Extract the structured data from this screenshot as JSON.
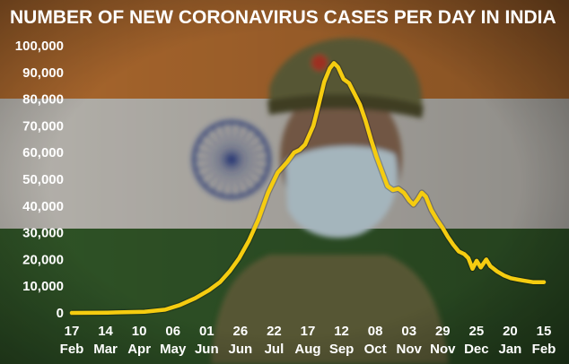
{
  "colors": {
    "line": "#f5cc10",
    "text": "#ffffff",
    "flag_saffron": "#d9843a",
    "flag_white": "#e8e4dc",
    "flag_green": "#3d6b32",
    "chakra": "#2a3f8c",
    "uniform": "#6b6a3f",
    "mask": "#c9dde6"
  },
  "background_image": {
    "description_icon": "indian-flag-with-masked-police-officer-photo"
  },
  "chart_data": {
    "type": "line",
    "title": "NUMBER OF NEW CORONAVIRUS CASES PER DAY IN INDIA",
    "ylim": [
      0,
      100000
    ],
    "yticks": [
      "0",
      "10,000",
      "20,000",
      "30,000",
      "40,000",
      "50,000",
      "60,000",
      "70,000",
      "80,000",
      "90,000",
      "100,000"
    ],
    "ytick_values": [
      0,
      10000,
      20000,
      30000,
      40000,
      50000,
      60000,
      70000,
      80000,
      90000,
      100000
    ],
    "xticks": [
      {
        "day": "17",
        "month": "Feb"
      },
      {
        "day": "14",
        "month": "Mar"
      },
      {
        "day": "10",
        "month": "Apr"
      },
      {
        "day": "06",
        "month": "May"
      },
      {
        "day": "01",
        "month": "Jun"
      },
      {
        "day": "26",
        "month": "Jun"
      },
      {
        "day": "22",
        "month": "Jul"
      },
      {
        "day": "17",
        "month": "Aug"
      },
      {
        "day": "12",
        "month": "Sep"
      },
      {
        "day": "08",
        "month": "Oct"
      },
      {
        "day": "03",
        "month": "Nov"
      },
      {
        "day": "29",
        "month": "Nov"
      },
      {
        "day": "25",
        "month": "Dec"
      },
      {
        "day": "20",
        "month": "Jan"
      },
      {
        "day": "15",
        "month": "Feb"
      }
    ],
    "series": [
      {
        "values": [
          [
            0,
            0
          ],
          [
            26,
            100
          ],
          [
            53,
            400
          ],
          [
            68,
            1200
          ],
          [
            79,
            3000
          ],
          [
            90,
            5500
          ],
          [
            100,
            8500
          ],
          [
            108,
            11500
          ],
          [
            115,
            15500
          ],
          [
            122,
            20500
          ],
          [
            129,
            27000
          ],
          [
            136,
            35000
          ],
          [
            143,
            45000
          ],
          [
            150,
            52500
          ],
          [
            157,
            56500
          ],
          [
            162,
            60000
          ],
          [
            166,
            61000
          ],
          [
            170,
            63000
          ],
          [
            176,
            70000
          ],
          [
            180,
            78000
          ],
          [
            184,
            86500
          ],
          [
            188,
            91500
          ],
          [
            191,
            93500
          ],
          [
            194,
            92000
          ],
          [
            198,
            87500
          ],
          [
            202,
            86000
          ],
          [
            206,
            82000
          ],
          [
            210,
            78000
          ],
          [
            214,
            72000
          ],
          [
            218,
            65000
          ],
          [
            222,
            58500
          ],
          [
            226,
            53000
          ],
          [
            230,
            47500
          ],
          [
            234,
            46000
          ],
          [
            238,
            46500
          ],
          [
            242,
            45000
          ],
          [
            246,
            42000
          ],
          [
            249,
            40500
          ],
          [
            252,
            42500
          ],
          [
            255,
            45000
          ],
          [
            258,
            43500
          ],
          [
            262,
            38500
          ],
          [
            266,
            35000
          ],
          [
            270,
            32000
          ],
          [
            274,
            28500
          ],
          [
            278,
            25500
          ],
          [
            282,
            23000
          ],
          [
            286,
            22000
          ],
          [
            289,
            20500
          ],
          [
            292,
            16500
          ],
          [
            295,
            19500
          ],
          [
            298,
            17000
          ],
          [
            302,
            20000
          ],
          [
            305,
            17500
          ],
          [
            310,
            15500
          ],
          [
            315,
            14000
          ],
          [
            320,
            13000
          ],
          [
            325,
            12500
          ],
          [
            330,
            12000
          ],
          [
            336,
            11500
          ],
          [
            344,
            11500
          ]
        ]
      }
    ],
    "x_day_origin": "17 Feb",
    "x_day_end": "15 Feb",
    "grid": false,
    "legend": "none"
  }
}
